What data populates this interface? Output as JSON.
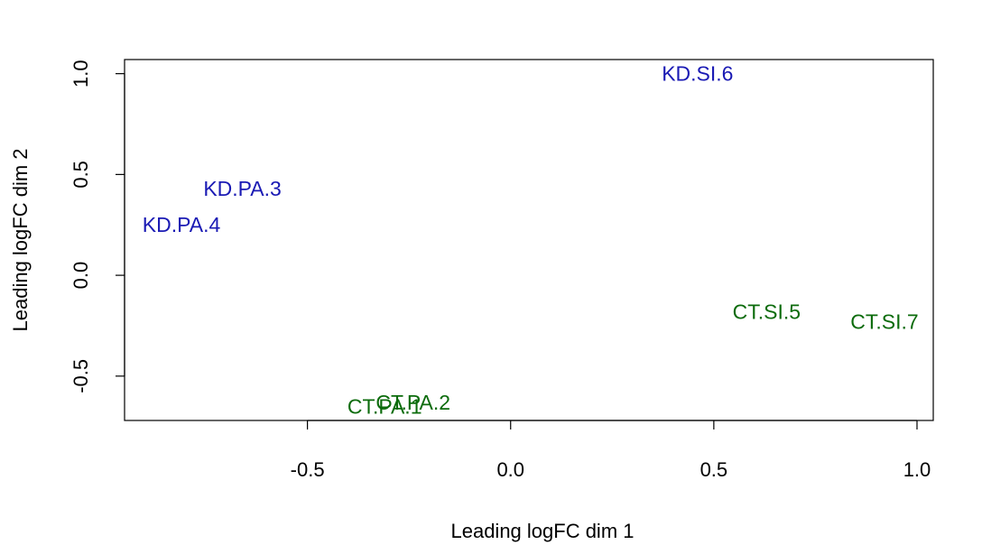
{
  "chart_data": {
    "type": "scatter",
    "xlabel": "Leading logFC dim 1",
    "ylabel": "Leading logFC dim 2",
    "xlim": [
      -0.95,
      1.04
    ],
    "ylim": [
      -0.72,
      1.07
    ],
    "xticks": [
      {
        "value": -0.5,
        "label": "-0.5"
      },
      {
        "value": 0.0,
        "label": "0.0"
      },
      {
        "value": 0.5,
        "label": "0.5"
      },
      {
        "value": 1.0,
        "label": "1.0"
      }
    ],
    "yticks": [
      {
        "value": -0.5,
        "label": "-0.5"
      },
      {
        "value": 0.0,
        "label": "0.0"
      },
      {
        "value": 0.5,
        "label": "0.5"
      },
      {
        "value": 1.0,
        "label": "1.0"
      }
    ],
    "points": [
      {
        "label": "KD.SI.6",
        "x": 0.46,
        "y": 1.0,
        "color": "#1a1ab4"
      },
      {
        "label": "KD.PA.3",
        "x": -0.66,
        "y": 0.43,
        "color": "#1a1ab4"
      },
      {
        "label": "KD.PA.4",
        "x": -0.81,
        "y": 0.25,
        "color": "#1a1ab4"
      },
      {
        "label": "CT.SI.5",
        "x": 0.63,
        "y": -0.18,
        "color": "#0b6b0b"
      },
      {
        "label": "CT.SI.7",
        "x": 0.92,
        "y": -0.23,
        "color": "#0b6b0b"
      },
      {
        "label": "CT.PA.1",
        "x": -0.31,
        "y": -0.65,
        "color": "#0b6b0b"
      },
      {
        "label": "CT.PA.2",
        "x": -0.24,
        "y": -0.63,
        "color": "#0b6b0b"
      }
    ]
  }
}
